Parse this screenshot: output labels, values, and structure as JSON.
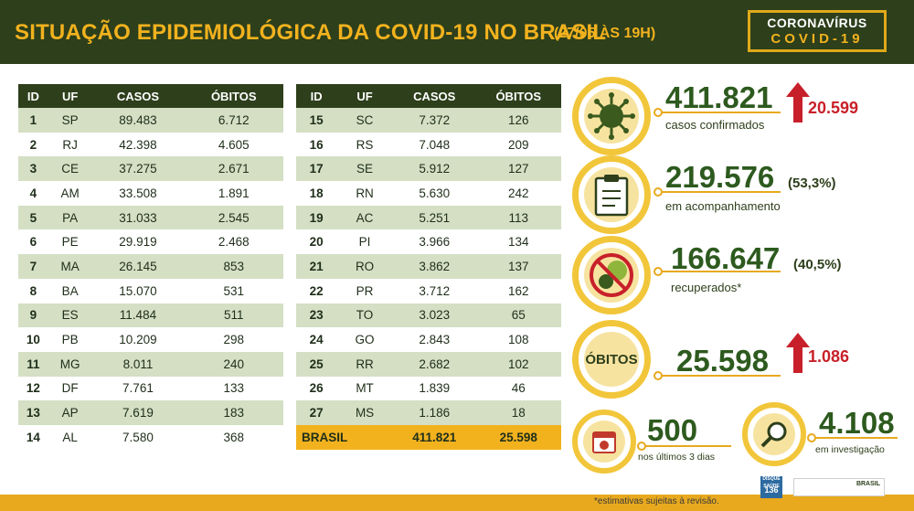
{
  "header": {
    "title": "SITUAÇÃO EPIDEMIOLÓGICA DA COVID-19 NO BRASIL",
    "subtitle": "(27/05 ÀS 19H)",
    "logo_line1": "CORONAVÍRUS",
    "logo_line2": "COVID-19"
  },
  "table": {
    "headers": [
      "ID",
      "UF",
      "CASOS",
      "ÓBITOS"
    ],
    "left_rows": [
      [
        "1",
        "SP",
        "89.483",
        "6.712"
      ],
      [
        "2",
        "RJ",
        "42.398",
        "4.605"
      ],
      [
        "3",
        "CE",
        "37.275",
        "2.671"
      ],
      [
        "4",
        "AM",
        "33.508",
        "1.891"
      ],
      [
        "5",
        "PA",
        "31.033",
        "2.545"
      ],
      [
        "6",
        "PE",
        "29.919",
        "2.468"
      ],
      [
        "7",
        "MA",
        "26.145",
        "853"
      ],
      [
        "8",
        "BA",
        "15.070",
        "531"
      ],
      [
        "9",
        "ES",
        "11.484",
        "511"
      ],
      [
        "10",
        "PB",
        "10.209",
        "298"
      ],
      [
        "11",
        "MG",
        "8.011",
        "240"
      ],
      [
        "12",
        "DF",
        "7.761",
        "133"
      ],
      [
        "13",
        "AP",
        "7.619",
        "183"
      ],
      [
        "14",
        "AL",
        "7.580",
        "368"
      ]
    ],
    "right_rows": [
      [
        "15",
        "SC",
        "7.372",
        "126"
      ],
      [
        "16",
        "RS",
        "7.048",
        "209"
      ],
      [
        "17",
        "SE",
        "5.912",
        "127"
      ],
      [
        "18",
        "RN",
        "5.630",
        "242"
      ],
      [
        "19",
        "AC",
        "5.251",
        "113"
      ],
      [
        "20",
        "PI",
        "3.966",
        "134"
      ],
      [
        "21",
        "RO",
        "3.862",
        "137"
      ],
      [
        "22",
        "PR",
        "3.712",
        "162"
      ],
      [
        "23",
        "TO",
        "3.023",
        "65"
      ],
      [
        "24",
        "GO",
        "2.843",
        "108"
      ],
      [
        "25",
        "RR",
        "2.682",
        "102"
      ],
      [
        "26",
        "MT",
        "1.839",
        "46"
      ],
      [
        "27",
        "MS",
        "1.186",
        "18"
      ]
    ],
    "total": {
      "label": "BRASIL",
      "cases": "411.821",
      "deaths": "25.598"
    }
  },
  "stats": {
    "confirmed": {
      "value": "411.821",
      "label": "casos confirmados",
      "delta": "20.599",
      "icon": "virus-icon"
    },
    "monitoring": {
      "value": "219.576",
      "pct": "(53,3%)",
      "label": "em acompanhamento",
      "icon": "clipboard-icon"
    },
    "recovered": {
      "value": "166.647",
      "pct": "(40,5%)",
      "label": "recuperados*",
      "icon": "no-virus-icon"
    },
    "deaths": {
      "circle_label": "ÓBITOS",
      "value": "25.598",
      "delta": "1.086"
    },
    "last3days": {
      "value": "500",
      "label": "nos últimos 3 dias",
      "icon": "calendar-icon"
    },
    "investigation": {
      "value": "4.108",
      "label": "em investigação",
      "icon": "magnifier-icon"
    }
  },
  "footer": {
    "note": "*estimativas sujeitas à revisão.",
    "badge_text": "DISQUE SAÚDE",
    "badge_number": "136",
    "gov_text": "BRASIL"
  },
  "colors": {
    "dark_green": "#2d3f1b",
    "gold": "#f2b21e",
    "light_row": "#d4dfc4",
    "accent_red": "#c8202a"
  }
}
